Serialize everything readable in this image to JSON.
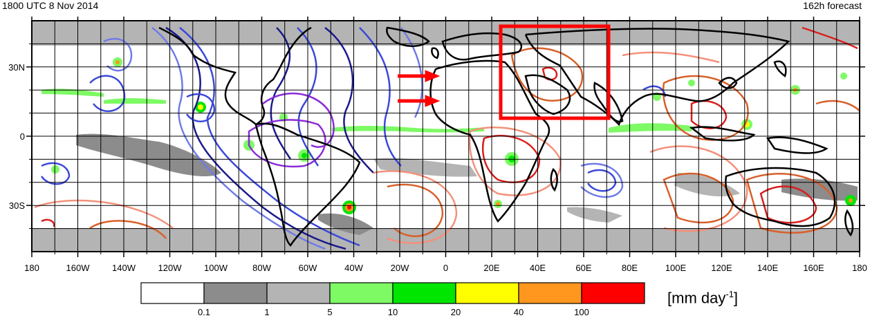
{
  "header": {
    "valid_time": "1800 UTC 8 Nov 2014",
    "forecast": "162h forecast"
  },
  "map": {
    "lon_labels": [
      "180",
      "160W",
      "140W",
      "120W",
      "100W",
      "80W",
      "60W",
      "40W",
      "20W",
      "0",
      "20E",
      "40E",
      "60E",
      "80E",
      "100E",
      "120E",
      "140E",
      "160E",
      "180"
    ],
    "lat_labels": [
      "30N",
      "0",
      "30S"
    ],
    "highlight_box": {
      "lon_min": 40,
      "lon_max": 70,
      "lat_min": 8,
      "lat_max": 48
    },
    "arrows": [
      {
        "lon": -16,
        "lat": 26,
        "direction": "east"
      },
      {
        "lon": -16,
        "lat": 15,
        "direction": "east"
      }
    ]
  },
  "legend": {
    "units_main": "[mm day",
    "units_exp": "-1",
    "units_close": "]",
    "bins": [
      {
        "color": "#ffffff"
      },
      {
        "color": "#8c8c8c"
      },
      {
        "color": "#b4b4b4"
      },
      {
        "color": "#7dfa64"
      },
      {
        "color": "#00e600"
      },
      {
        "color": "#ffff00"
      },
      {
        "color": "#ff961e"
      },
      {
        "color": "#ff0000"
      }
    ],
    "thresholds": [
      "0.1",
      "1",
      "5",
      "10",
      "20",
      "40",
      "100"
    ]
  },
  "colors": {
    "gray_band": "#b4b4b4",
    "highlight": "#ff0000",
    "contour_blue_dark": "#1a1a8c",
    "contour_blue": "#3a48d8",
    "contour_blue_light": "#6f7be8",
    "contour_purple": "#8a2bd8",
    "contour_red": "#d81e1e",
    "contour_orange": "#d8602a",
    "contour_salmon": "#f4907a"
  }
}
